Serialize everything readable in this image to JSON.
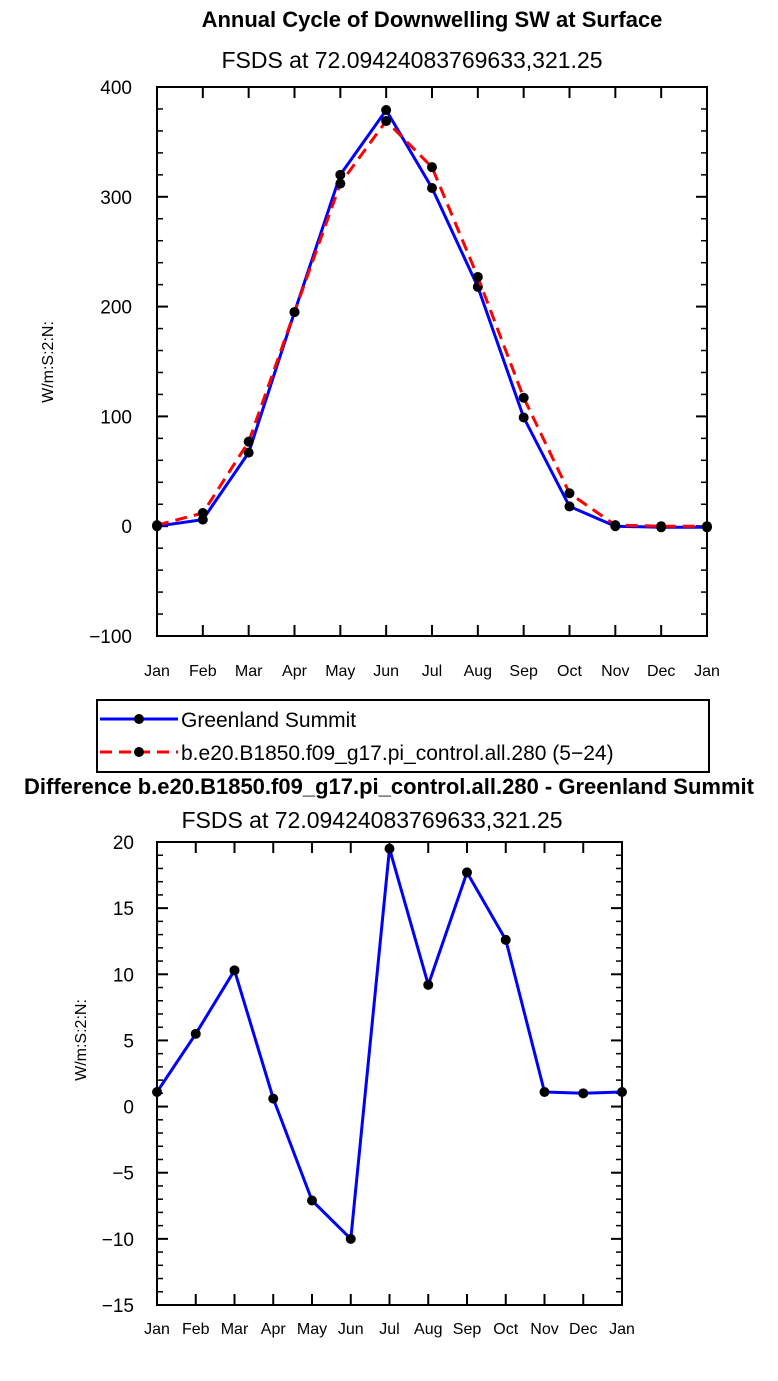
{
  "chart_data": [
    {
      "type": "line",
      "title": "Annual Cycle of Downwelling SW at Surface",
      "subtitle": "FSDS at 72.09424083769633,321.25",
      "xlabel": "",
      "ylabel": "W/m:S:2:N:",
      "categories": [
        "Jan",
        "Feb",
        "Mar",
        "Apr",
        "May",
        "Jun",
        "Jul",
        "Aug",
        "Sep",
        "Oct",
        "Nov",
        "Dec",
        "Jan"
      ],
      "ylim": [
        -100,
        400
      ],
      "yticks": [
        -100,
        0,
        100,
        200,
        300,
        400
      ],
      "yticks_labels": [
        "−100",
        "0",
        "100",
        "200",
        "300",
        "400"
      ],
      "series": [
        {
          "name": "Greenland Summit",
          "color": "#0000ff",
          "dash": "solid",
          "values": [
            0,
            6,
            67,
            195,
            320,
            379,
            308,
            218,
            99,
            18,
            0,
            -1,
            -1
          ]
        },
        {
          "name": "b.e20.B1850.f09_g17.pi_control.all.280 (5−24)",
          "color": "#ff0000",
          "dash": "dashed",
          "values": [
            1,
            12,
            77,
            195,
            312,
            369,
            327,
            227,
            117,
            30,
            1,
            0,
            0
          ]
        }
      ],
      "legend": "bottom",
      "grid": false
    },
    {
      "type": "line",
      "title": "Difference b.e20.B1850.f09_g17.pi_control.all.280 - Greenland Summit",
      "subtitle": "FSDS at 72.09424083769633,321.25",
      "xlabel": "",
      "ylabel": "W/m:S:2:N:",
      "categories": [
        "Jan",
        "Feb",
        "Mar",
        "Apr",
        "May",
        "Jun",
        "Jul",
        "Aug",
        "Sep",
        "Oct",
        "Nov",
        "Dec",
        "Jan"
      ],
      "ylim": [
        -15,
        20
      ],
      "yticks": [
        -15,
        -10,
        -5,
        0,
        5,
        10,
        15,
        20
      ],
      "yticks_labels": [
        "−15",
        "−10",
        "−5",
        "0",
        "5",
        "10",
        "15",
        "20"
      ],
      "series": [
        {
          "name": "",
          "color": "#0000ff",
          "dash": "solid",
          "values": [
            1.1,
            5.5,
            10.3,
            0.6,
            -7.1,
            -10.0,
            19.5,
            9.2,
            17.7,
            12.6,
            1.1,
            1.0,
            1.1
          ]
        }
      ],
      "grid": false
    }
  ]
}
